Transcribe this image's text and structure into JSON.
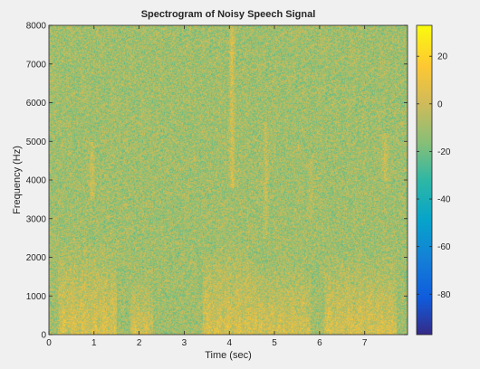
{
  "chart_data": {
    "type": "heatmap",
    "title": "Spectrogram of Noisy Speech Signal",
    "xlabel": "Time (sec)",
    "ylabel": "Frequency (Hz)",
    "xlim": [
      0,
      7.95
    ],
    "ylim": [
      0,
      8000
    ],
    "x_ticks": [
      0,
      1,
      2,
      3,
      4,
      5,
      6,
      7
    ],
    "y_ticks": [
      0,
      1000,
      2000,
      3000,
      4000,
      5000,
      6000,
      7000,
      8000
    ],
    "colorbar": {
      "colormap": "parula",
      "range": [
        -97,
        33
      ],
      "ticks": [
        20,
        0,
        -20,
        -40,
        -60,
        -80
      ]
    },
    "background_level_db": -10,
    "speech_segments": [
      {
        "t_start": 0.2,
        "t_end": 1.5,
        "max_freq_hz": 2500,
        "level_db": 10
      },
      {
        "t_start": 1.8,
        "t_end": 2.3,
        "max_freq_hz": 1600,
        "level_db": 8
      },
      {
        "t_start": 3.4,
        "t_end": 4.6,
        "max_freq_hz": 2300,
        "level_db": 10
      },
      {
        "t_start": 4.6,
        "t_end": 5.8,
        "max_freq_hz": 1900,
        "level_db": 9
      },
      {
        "t_start": 6.1,
        "t_end": 7.7,
        "max_freq_hz": 2100,
        "level_db": 10
      }
    ],
    "vertical_bursts": [
      {
        "t": 0.95,
        "f_low_hz": 3500,
        "f_high_hz": 5000,
        "level_db": 12
      },
      {
        "t": 4.05,
        "f_low_hz": 3800,
        "f_high_hz": 8000,
        "level_db": 14
      },
      {
        "t": 4.8,
        "f_low_hz": 2500,
        "f_high_hz": 5500,
        "level_db": 8
      },
      {
        "t": 5.8,
        "f_low_hz": 3000,
        "f_high_hz": 4500,
        "level_db": 6
      },
      {
        "t": 7.45,
        "f_low_hz": 4000,
        "f_high_hz": 5200,
        "level_db": 10
      }
    ],
    "grid": false
  }
}
